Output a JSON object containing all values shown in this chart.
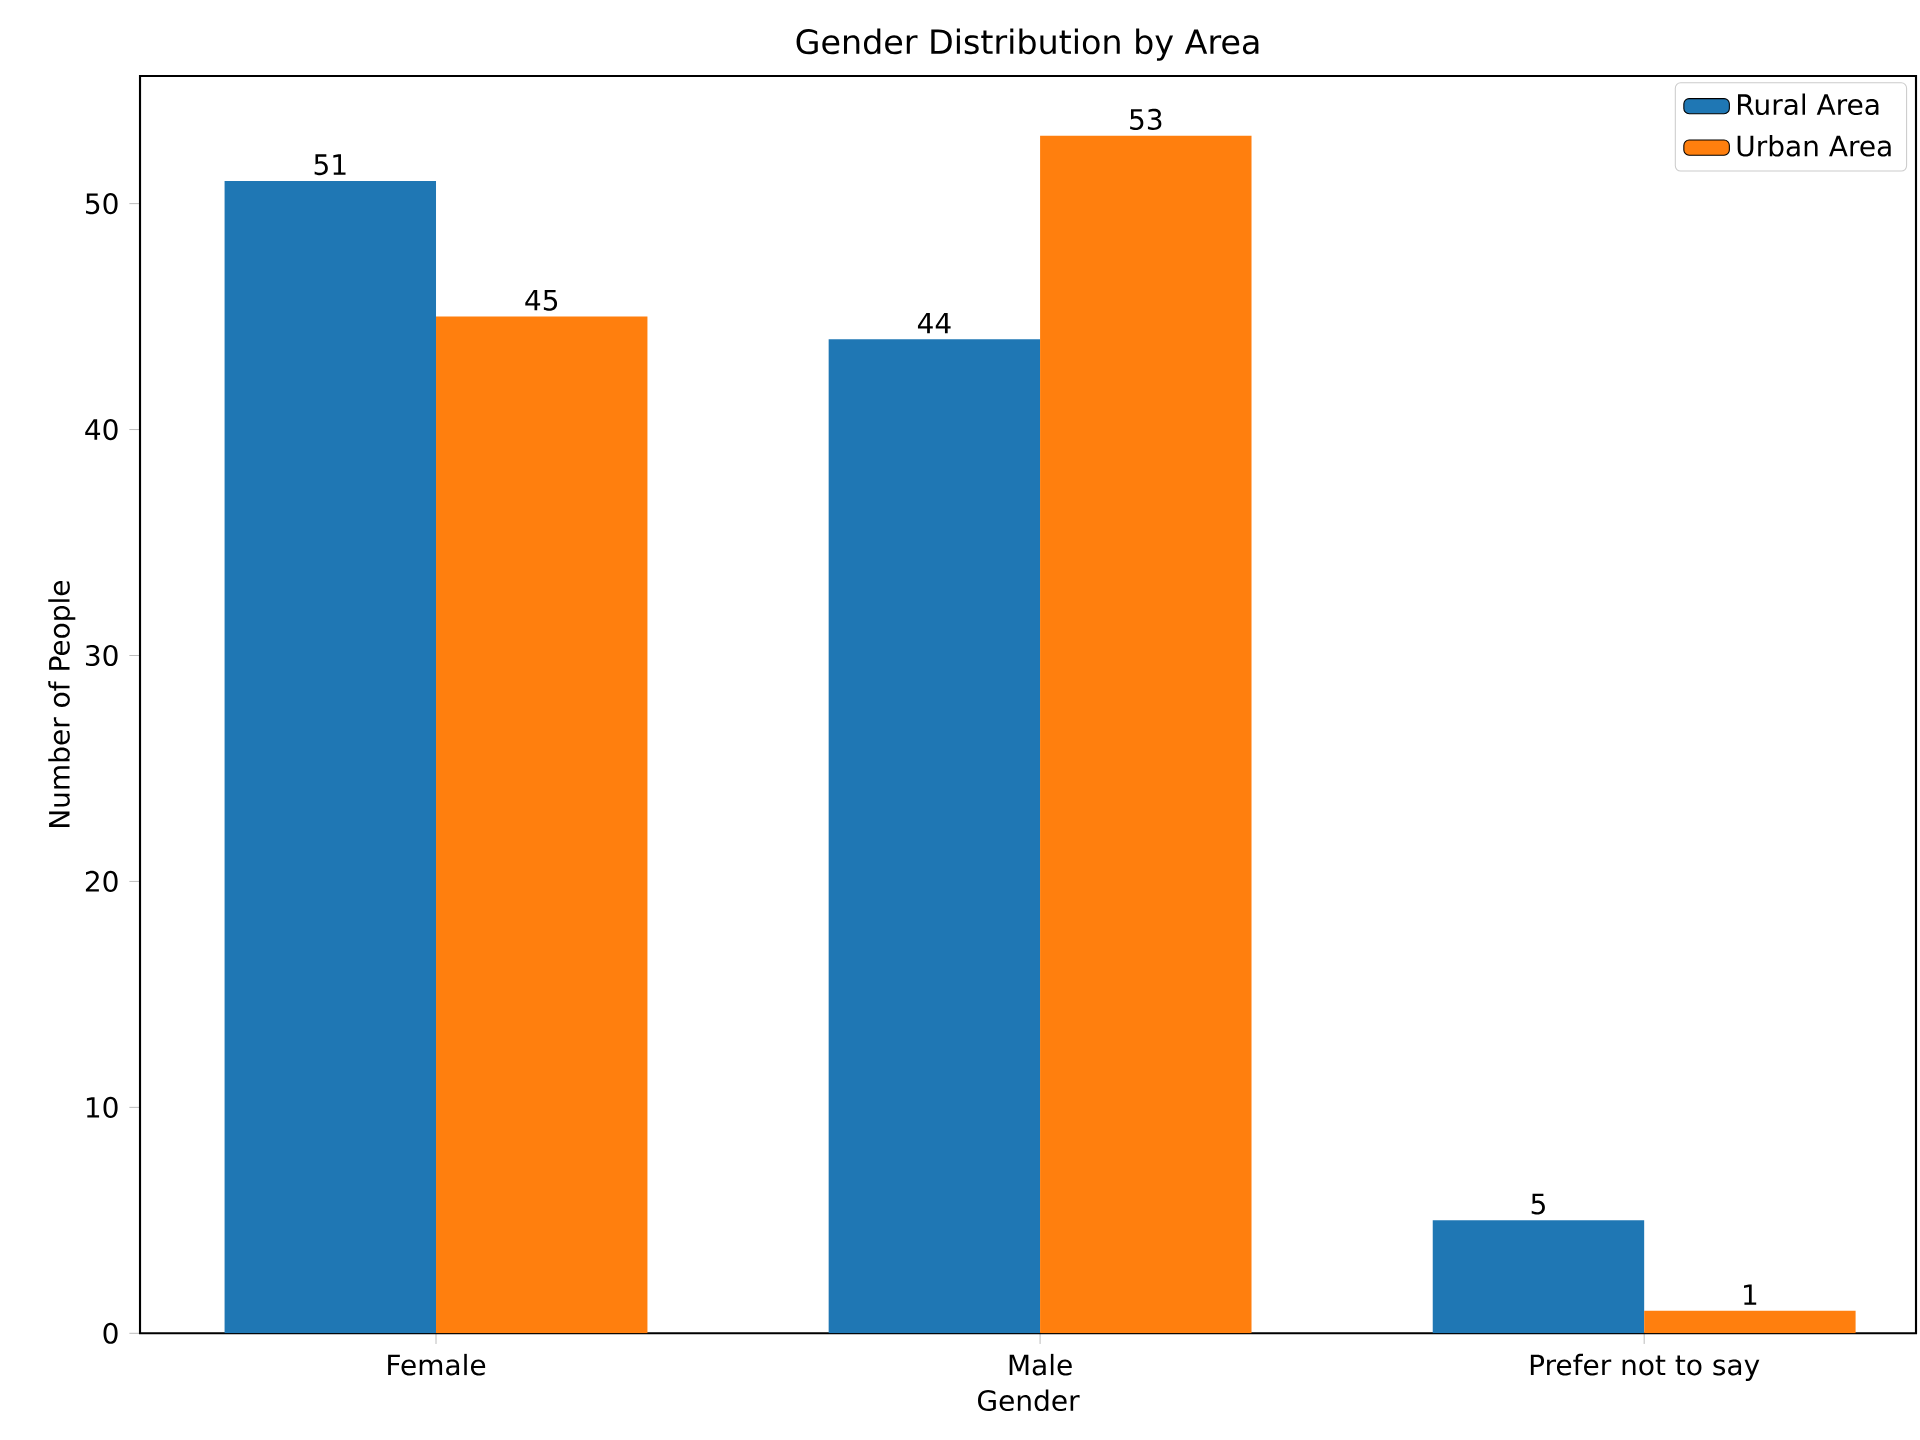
{
  "chart_data": {
    "type": "bar",
    "title": "Gender Distribution by Area",
    "xlabel": "Gender",
    "ylabel": "Number of People",
    "categories": [
      "Female",
      "Male",
      "Prefer not to say"
    ],
    "series": [
      {
        "name": "Rural Area",
        "color": "#1f77b4",
        "values": [
          51,
          44,
          5
        ]
      },
      {
        "name": "Urban Area",
        "color": "#ff7f0e",
        "values": [
          45,
          53,
          1
        ]
      }
    ],
    "ylim": [
      0,
      55.65
    ],
    "yticks": [
      0,
      10,
      20,
      30,
      40,
      50
    ],
    "grid": false,
    "legend": "top right",
    "data_labels": true
  }
}
